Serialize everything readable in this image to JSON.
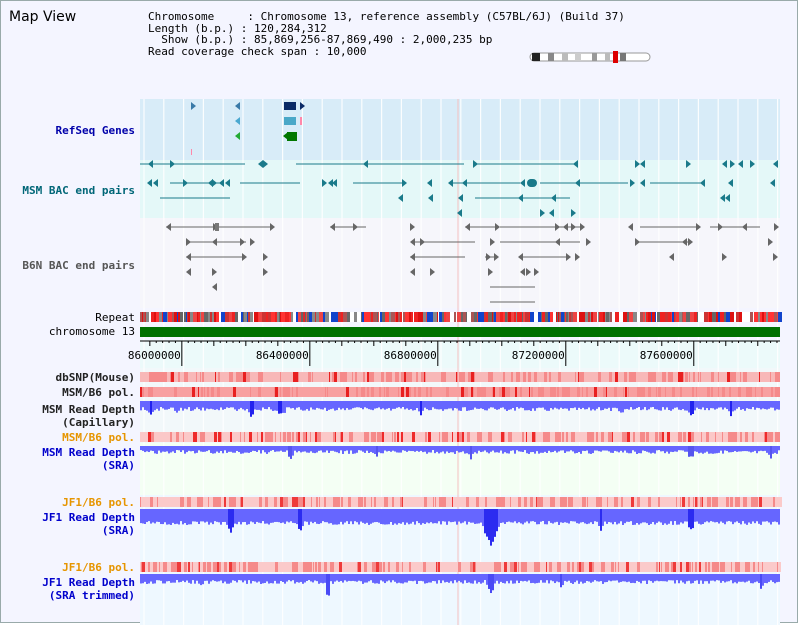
{
  "title": "Map View",
  "info": {
    "line1": "Chromosome     : Chromosome 13, reference assembly (C57BL/6J) (Build 37)",
    "line2": "Length (b.p.) : 120,284,312",
    "line3": "  Show (b.p.) : 85,869,256-87,869,490 : 2,000,235 bp",
    "line4": "Read coverage check span : 10,000"
  },
  "tracks": {
    "refseq": "RefSeq Genes",
    "msm_bac": "MSM BAC end pairs",
    "b6n_bac": "B6N BAC end pairs",
    "repeat": "Repeat",
    "chromosome": "chromosome 13",
    "dbsnp": "dbSNP(Mouse)",
    "msm_b6_pol_1": "MSM/B6 pol.",
    "msm_read_depth_cap_1": "MSM Read Depth",
    "msm_read_depth_cap_2": "(Capillary)",
    "msm_b6_pol_2": "MSM/B6 pol.",
    "msm_read_depth_sra_1": "MSM Read Depth",
    "msm_read_depth_sra_2": "(SRA)",
    "jf1_b6_pol_1": "JF1/B6 pol.",
    "jf1_read_depth_sra_1": "JF1 Read Depth",
    "jf1_read_depth_sra_2": "(SRA)",
    "jf1_b6_pol_2": "JF1/B6 pol.",
    "jf1_read_depth_trim_1": "JF1 Read Depth",
    "jf1_read_depth_trim_2": "(SRA trimmed)"
  },
  "axis": {
    "ticks": [
      86000000,
      86400000,
      86800000,
      87200000,
      87600000
    ],
    "range": [
      85869256,
      87869490
    ]
  },
  "colors": {
    "refseq_bg": "#d8ecf8",
    "msm_bg": "#e4f8f8",
    "b6n_bg": "#f4f4fa",
    "chromosome": "#007000",
    "depth_blue": "#3333ff",
    "pol_red": "#ee2222"
  }
}
